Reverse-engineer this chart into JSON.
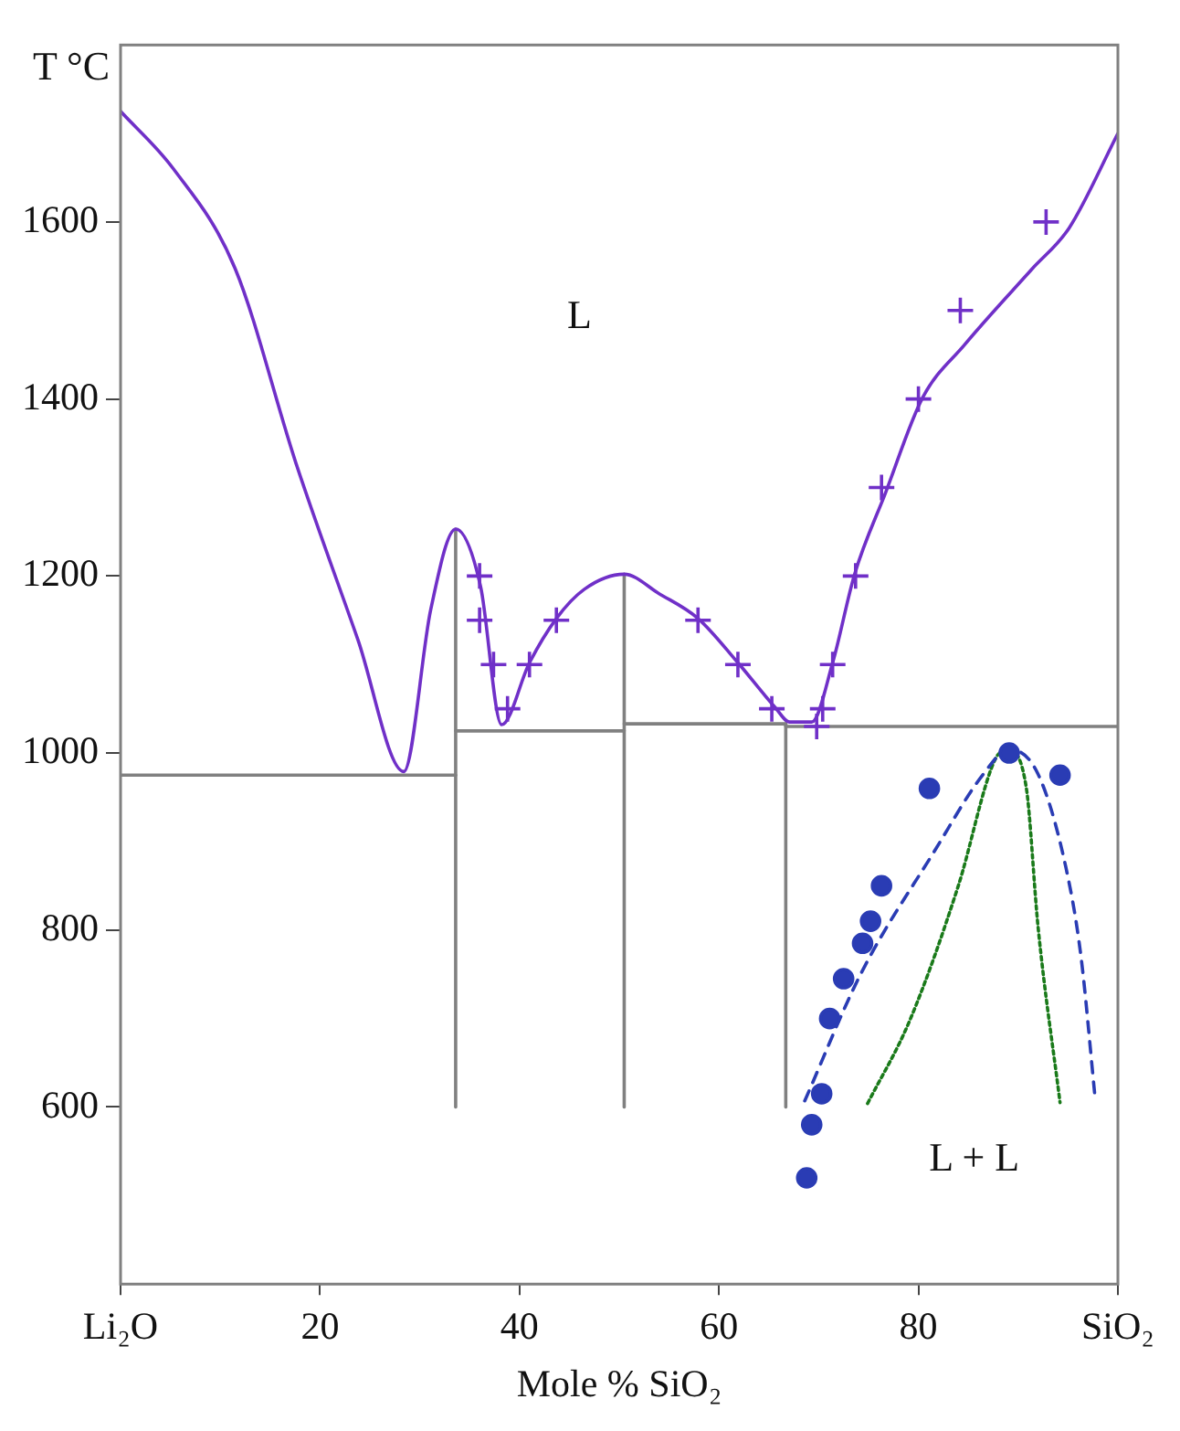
{
  "chart_data": {
    "type": "line",
    "xlabel": "Mole % SiO₂",
    "ylabel": "T °C",
    "xlim": [
      0,
      100
    ],
    "ylim": [
      400,
      1800
    ],
    "xticks": [
      {
        "value": 0,
        "label": "Li₂O"
      },
      20,
      40,
      60,
      80,
      {
        "value": 100,
        "label": "SiO₂"
      }
    ],
    "yticks": [
      600,
      800,
      1000,
      1200,
      1400,
      1600
    ],
    "grid": false,
    "legend": false,
    "series": [
      {
        "color": "#7030c8",
        "line_style": "solid",
        "marker": "none",
        "x": [
          0,
          5.3,
          11.5,
          17.6,
          23.8,
          28.4,
          31.1,
          33.6,
          36.1,
          38.2,
          41,
          43.7,
          46.5,
          50.5,
          54,
          57.9,
          61.9,
          65.6,
          67.1,
          69.3,
          71.4,
          73.6,
          76.7,
          80.4,
          84.6,
          91.4,
          95.1,
          100
        ],
        "values": [
          1725,
          1660,
          1547,
          1327,
          1128,
          979,
          1162,
          1253,
          1188,
          1032,
          1102,
          1152,
          1185,
          1202,
          1180,
          1152,
          1102,
          1052,
          1035,
          1035,
          1102,
          1202,
          1294,
          1401,
          1461,
          1547,
          1593,
          1700
        ]
      },
      {
        "type": "scatter",
        "color": "#7030c8",
        "marker": "cross",
        "x": [
          36,
          36,
          37.4,
          38.8,
          41,
          43.7,
          57.9,
          61.9,
          65.3,
          69.8,
          70.4,
          71.4,
          73.7,
          76.3,
          80,
          84.2,
          92.8
        ],
        "values": [
          1200,
          1150,
          1100,
          1050,
          1100,
          1150,
          1150,
          1100,
          1050,
          1030,
          1050,
          1100,
          1200,
          1300,
          1400,
          1500,
          1600
        ]
      },
      {
        "type": "scatter",
        "color": "#2a3cb4",
        "marker": "circle",
        "x": [
          89.1,
          94.2,
          81.1,
          76.3,
          75.2,
          74.4,
          72.5,
          71.1,
          70.3,
          69.3,
          68.8
        ],
        "values": [
          1000,
          975,
          960,
          850,
          810,
          785,
          745,
          700,
          615,
          580,
          520
        ]
      },
      {
        "color": "#2a3cb4",
        "line_style": "dashed",
        "marker": "none",
        "x": [
          68.6,
          74.2,
          81.6,
          86.5,
          89.1,
          92,
          94.8,
          96.3,
          97.7
        ],
        "values": [
          607,
          750,
          889,
          976,
          1004,
          976,
          870,
          770,
          612
        ]
      },
      {
        "color": "#1a7a1a",
        "line_style": "dotted",
        "marker": "none",
        "x": [
          74.9,
          79.1,
          84,
          87.7,
          89,
          90.8,
          92,
          94.2
        ],
        "values": [
          604,
          697,
          850,
          993,
          1003,
          962,
          803,
          605
        ]
      },
      {
        "type": "line",
        "color": "#808080",
        "line_style": "solid",
        "marker": "none",
        "x": [
          0,
          33.6
        ],
        "values": [
          975,
          975
        ]
      },
      {
        "type": "line",
        "color": "#808080",
        "line_style": "solid",
        "marker": "none",
        "x": [
          33.6,
          33.6
        ],
        "values": [
          600,
          1253
        ]
      },
      {
        "type": "line",
        "color": "#808080",
        "line_style": "solid",
        "marker": "none",
        "x": [
          33.6,
          50.5
        ],
        "values": [
          1025,
          1025
        ]
      },
      {
        "type": "line",
        "color": "#808080",
        "line_style": "solid",
        "marker": "none",
        "x": [
          50.5,
          50.5
        ],
        "values": [
          600,
          1202
        ]
      },
      {
        "color": "#808080",
        "line_style": "solid",
        "marker": "none",
        "x": [
          50.5,
          66.7,
          66.7,
          100
        ],
        "values": [
          1033,
          1033,
          1030,
          1030
        ]
      },
      {
        "color": "#808080",
        "line_style": "solid",
        "marker": "none",
        "x": [
          66.7,
          66.7
        ],
        "values": [
          600,
          1033
        ]
      }
    ],
    "annotations": [
      "L",
      "L + L"
    ]
  }
}
